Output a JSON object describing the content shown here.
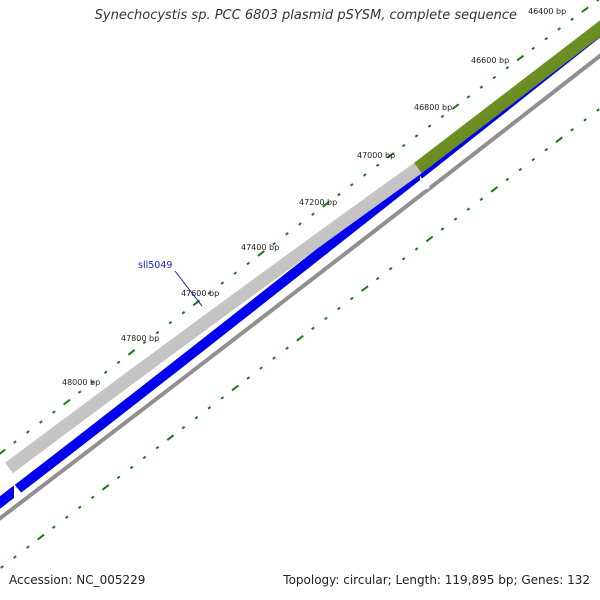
{
  "title": "Synechocystis sp. PCC 6803 plasmid pSYSM, complete sequence",
  "ticks": [
    "46400 bp",
    "46600 bp",
    "46800 bp",
    "47000 bp",
    "47200 bp",
    "47400 bp",
    "47600 bp",
    "47800 bp",
    "48000 bp"
  ],
  "gene_label": "sll5049",
  "footer": {
    "accession": "Accession: NC_005229",
    "summary": "Topology: circular; Length: 119,895 bp; Genes: 132"
  },
  "colors": {
    "olive_feature": "#6b8e23",
    "gray_feature": "#c0c0c0",
    "blue_feature": "#0000ee",
    "backbone": "#909090",
    "tick_green": "#1a7a1a",
    "gene_label": "#1a1acc"
  }
}
